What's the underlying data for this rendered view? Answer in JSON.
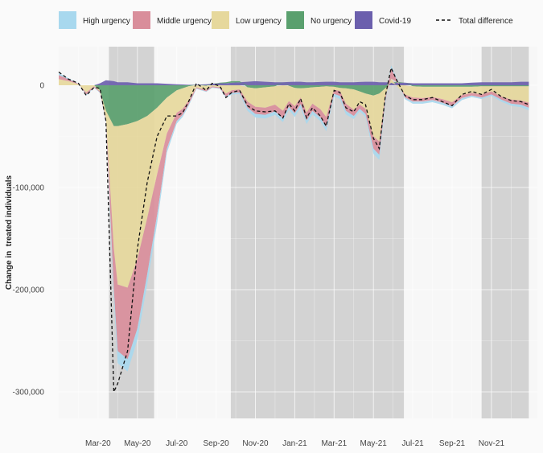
{
  "chart_data": {
    "type": "area",
    "title": "",
    "xlabel": "",
    "ylabel": "Change in  treated individuals",
    "ylim": [
      -312000,
      36000
    ],
    "yticks": [
      {
        "value": 0,
        "label": "0"
      },
      {
        "value": -100000,
        "label": "-100,000"
      },
      {
        "value": -200000,
        "label": "-200,000"
      },
      {
        "value": -300000,
        "label": "-300,000"
      }
    ],
    "xlim_months": [
      0,
      23.9
    ],
    "xticks": [
      {
        "month": 2,
        "label": "Mar-20"
      },
      {
        "month": 4,
        "label": "May-20"
      },
      {
        "month": 6,
        "label": "Jul-20"
      },
      {
        "month": 8,
        "label": "Sep-20"
      },
      {
        "month": 10,
        "label": "Nov-20"
      },
      {
        "month": 12,
        "label": "Jan-21"
      },
      {
        "month": 14,
        "label": "Mar-21"
      },
      {
        "month": 16,
        "label": "May-21"
      },
      {
        "month": 18,
        "label": "Jul-21"
      },
      {
        "month": 20,
        "label": "Sep-21"
      },
      {
        "month": 22,
        "label": "Nov-21"
      }
    ],
    "shaded_periods": [
      [
        2.55,
        4.85
      ],
      [
        8.75,
        17.55
      ],
      [
        21.5,
        23.9
      ]
    ],
    "legend": [
      {
        "name": "High urgency",
        "color": "#a8d8ee",
        "kind": "fill"
      },
      {
        "name": "Middle urgency",
        "color": "#d98e9b",
        "kind": "fill"
      },
      {
        "name": "Low urgency",
        "color": "#e6d89c",
        "kind": "fill"
      },
      {
        "name": "No urgency",
        "color": "#5aa06e",
        "kind": "fill"
      },
      {
        "name": "Covid-19",
        "color": "#6b5fad",
        "kind": "fill"
      },
      {
        "name": "Total difference",
        "color": "#111111",
        "kind": "dashed-line"
      }
    ],
    "x": [
      0,
      0.5,
      1,
      1.4,
      1.8,
      2.1,
      2.4,
      2.8,
      3.0,
      3.5,
      4.0,
      4.5,
      5.0,
      5.5,
      6.0,
      6.3,
      6.6,
      7.0,
      7.5,
      7.8,
      8.2,
      8.5,
      8.8,
      9.2,
      9.6,
      10.0,
      10.5,
      11.0,
      11.4,
      11.7,
      12.0,
      12.3,
      12.6,
      12.9,
      13.3,
      13.6,
      14.0,
      14.3,
      14.6,
      15.0,
      15.3,
      15.6,
      16.0,
      16.3,
      16.6,
      16.9,
      17.2,
      17.6,
      18.0,
      18.5,
      19.0,
      19.5,
      20.0,
      20.5,
      21.0,
      21.5,
      22.0,
      22.5,
      23.0,
      23.5,
      23.9
    ],
    "series": [
      {
        "name": "Covid-19",
        "values": [
          0,
          0,
          0,
          0,
          0,
          2000,
          5000,
          4000,
          3000,
          3000,
          2000,
          2000,
          2000,
          1500,
          1000,
          800,
          500,
          500,
          1000,
          1500,
          2000,
          2000,
          2500,
          3000,
          3500,
          4000,
          3500,
          3000,
          3000,
          3200,
          3500,
          3500,
          3000,
          3000,
          3200,
          3500,
          3500,
          3000,
          3000,
          3000,
          3200,
          3500,
          3500,
          3000,
          3000,
          2500,
          2500,
          2500,
          2000,
          2000,
          2000,
          2000,
          2000,
          2000,
          2500,
          3000,
          3000,
          3000,
          3000,
          3500,
          3500
        ]
      },
      {
        "name": "No urgency",
        "values": [
          0,
          0,
          0,
          0,
          0,
          -5000,
          -25000,
          -40000,
          -40000,
          -38000,
          -35000,
          -30000,
          -22000,
          -12000,
          -5000,
          -3000,
          -1000,
          0,
          -500,
          0,
          500,
          1000,
          1500,
          1000,
          -2000,
          -3000,
          -2000,
          -1000,
          0,
          -500,
          -2500,
          -3000,
          -2500,
          -2000,
          -1500,
          -1000,
          -1500,
          -2500,
          -3000,
          -4000,
          -6000,
          -8000,
          -10000,
          -8000,
          -3000,
          0,
          1000,
          0,
          -1000,
          -1500,
          -1500,
          -1500,
          -1500,
          -1500,
          -1500,
          -1000,
          -1000,
          -1000,
          -1000,
          -1000,
          -1000
        ]
      },
      {
        "name": "Low urgency",
        "values": [
          6000,
          4000,
          1000,
          -7000,
          -1000,
          -1000,
          -8000,
          -120000,
          -155000,
          -160000,
          -135000,
          -100000,
          -65000,
          -35000,
          -22000,
          -20000,
          -14000,
          -2000,
          -4000,
          -1000,
          -2000,
          -8000,
          -5000,
          -4000,
          -14000,
          -18000,
          -20000,
          -18000,
          -25000,
          -15000,
          -18000,
          -9000,
          -24000,
          -16000,
          -22000,
          -30000,
          -3000,
          -3000,
          -15000,
          -20000,
          -13000,
          -15000,
          -40000,
          -47000,
          -8000,
          4000,
          -1000,
          -9000,
          -11000,
          -11000,
          -10000,
          -12000,
          -15000,
          -8000,
          -6000,
          -8000,
          -5000,
          -10000,
          -13000,
          -14000,
          -16000
        ]
      },
      {
        "name": "Middle urgency",
        "values": [
          4000,
          2000,
          500,
          -2000,
          -1000,
          -1000,
          -2000,
          -40000,
          -65000,
          -70000,
          -68000,
          -55000,
          -40000,
          -15000,
          -8000,
          -6000,
          -4000,
          -1000,
          -1500,
          -1000,
          -1000,
          -3000,
          -2500,
          -3000,
          -6000,
          -7000,
          -7000,
          -6500,
          -7500,
          -5500,
          -7000,
          -6500,
          -8000,
          -7000,
          -8000,
          -10000,
          -4000,
          -5000,
          -7000,
          -6000,
          -4000,
          -5000,
          -12000,
          -13000,
          -5000,
          10000,
          2000,
          -3000,
          -4000,
          -3500,
          -3000,
          -3500,
          -4000,
          -3000,
          -2500,
          -3000,
          -3000,
          -3000,
          -4000,
          -4000,
          -5000
        ]
      },
      {
        "name": "High urgency",
        "values": [
          2000,
          1000,
          300,
          -1000,
          -500,
          -500,
          -1000,
          -8000,
          -12000,
          -12000,
          -11000,
          -10000,
          -8000,
          -4000,
          -2500,
          -2000,
          -1500,
          -500,
          -500,
          -500,
          -500,
          -1500,
          -1500,
          -1500,
          -3000,
          -3500,
          -3500,
          -3500,
          -3500,
          -3000,
          -3500,
          -3500,
          -3500,
          -3500,
          -3500,
          -4000,
          -2500,
          -3000,
          -3500,
          -3000,
          -2500,
          -3000,
          -5000,
          -5000,
          -2500,
          3000,
          1000,
          -1500,
          -2000,
          -2000,
          -2000,
          -2000,
          -2000,
          -2000,
          -1500,
          -1500,
          -1500,
          -2000,
          -2000,
          -2500,
          -2500
        ]
      }
    ],
    "total_difference": [
      13000,
      6000,
      2000,
      -10000,
      -2000,
      -3000,
      -35000,
      -300000,
      -292000,
      -260000,
      -160000,
      -95000,
      -50000,
      -30000,
      -30000,
      -27000,
      -16000,
      2000,
      -5000,
      2000,
      -1000,
      -12000,
      -7000,
      -5000,
      -20000,
      -25000,
      -26000,
      -25000,
      -32000,
      -18000,
      -25000,
      -13000,
      -32000,
      -22000,
      -30000,
      -40000,
      -5000,
      -7000,
      -22000,
      -26000,
      -16000,
      -19000,
      -52000,
      -62000,
      -11000,
      17000,
      4500,
      -10000,
      -14000,
      -14000,
      -12000,
      -16000,
      -20000,
      -9000,
      -6000,
      -9000,
      -4000,
      -11000,
      -15000,
      -16000,
      -19000
    ]
  }
}
